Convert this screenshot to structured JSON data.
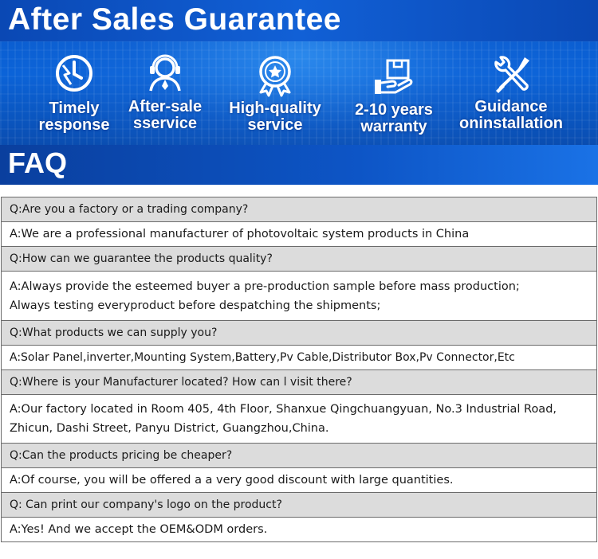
{
  "header": {
    "title": "After Sales Guarantee"
  },
  "features": [
    {
      "icon": "clock-lightning-icon",
      "label": "Timely\nresponse"
    },
    {
      "icon": "customer-service-icon",
      "label": "After-sale\nsservice"
    },
    {
      "icon": "quality-badge-icon",
      "label": "High-quality\nservice"
    },
    {
      "icon": "warranty-box-icon",
      "label": "2-10 years\nwarranty"
    },
    {
      "icon": "wrench-screwdriver-icon",
      "label": "Guidance\noninstallation"
    }
  ],
  "faq": {
    "title": "FAQ",
    "items": [
      {
        "q": "Q:Are you a factory or a trading company?",
        "a": [
          "A:We are a professional manufacturer of photovoltaic system products in China"
        ]
      },
      {
        "q": "Q:How can we guarantee the products quality?",
        "a": [
          "A:Always provide the esteemed buyer a pre-production sample before mass production;",
          "Always testing everyproduct before despatching the shipments;"
        ]
      },
      {
        "q": "Q:What products we can supply you?",
        "a": [
          "A:Solar Panel,inverter,Mounting System,Battery,Pv Cable,Distributor Box,Pv Connector,Etc"
        ]
      },
      {
        "q": "Q:Where is your Manufacturer located? How can l visit there?",
        "a": [
          "A:Our factory located in Room 405, 4th Floor, Shanxue Qingchuangyuan, No.3 Industrial Road,",
          "Zhicun, Dashi Street, Panyu District, Guangzhou,China."
        ]
      },
      {
        "q": "Q:Can the products pricing be cheaper?",
        "a": [
          "A:Of course, you will be offered a a very good discount with large quantities."
        ]
      },
      {
        "q": "Q: Can print our company's logo on the product?",
        "a": [
          "A:Yes! And we accept the OEM&ODM orders."
        ]
      }
    ]
  }
}
